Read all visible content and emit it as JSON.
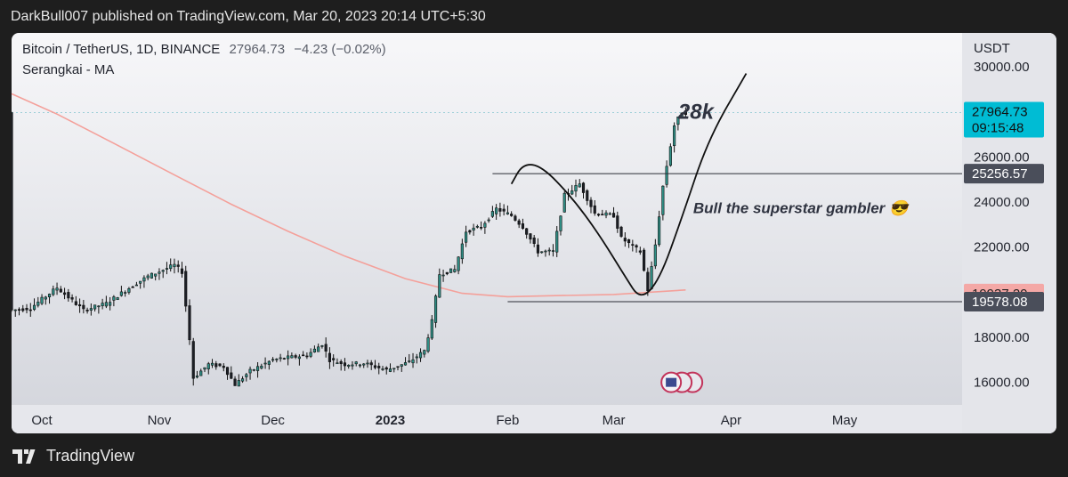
{
  "header": {
    "published_text": "DarkBull007 published on TradingView.com, Mar 20, 2023 20:14 UTC+5:30"
  },
  "symbol": {
    "name": "Bitcoin / TetherUS, 1D, BINANCE",
    "last": "27964.73",
    "change": "−4.23 (−0.02%)",
    "indicator": "Serangkai - MA"
  },
  "footer": {
    "brand": "TradingView"
  },
  "chart_data": {
    "type": "candlestick",
    "currency": "USDT",
    "ylim": [
      15000,
      31500
    ],
    "y_ticks": [
      {
        "value": 30000,
        "label": "30000.00"
      },
      {
        "value": 26000,
        "label": "26000.00"
      },
      {
        "value": 24000,
        "label": "24000.00"
      },
      {
        "value": 22000,
        "label": "22000.00"
      },
      {
        "value": 18000,
        "label": "18000.00"
      },
      {
        "value": 16000,
        "label": "16000.00"
      }
    ],
    "x_ticks": [
      {
        "date": "2022-10-01",
        "label": "Oct",
        "bold": false
      },
      {
        "date": "2022-11-01",
        "label": "Nov",
        "bold": false
      },
      {
        "date": "2022-12-01",
        "label": "Dec",
        "bold": false
      },
      {
        "date": "2023-01-01",
        "label": "2023",
        "bold": true
      },
      {
        "date": "2023-02-01",
        "label": "Feb",
        "bold": false
      },
      {
        "date": "2023-03-01",
        "label": "Mar",
        "bold": false
      },
      {
        "date": "2023-04-01",
        "label": "Apr",
        "bold": false
      },
      {
        "date": "2023-05-01",
        "label": "May",
        "bold": false
      }
    ],
    "x_range": [
      "2022-09-23",
      "2023-06-01"
    ],
    "price_labels": [
      {
        "value": 27964.73,
        "lines": [
          "27964.73",
          "09:15:48"
        ],
        "bg": "#00bcd4",
        "fg": "#111111"
      },
      {
        "value": 25256.57,
        "lines": [
          "25256.57"
        ],
        "bg": "#4a4e5a",
        "fg": "#ffffff"
      },
      {
        "value": 19937.29,
        "lines": [
          "19937.29"
        ],
        "bg": "#f4a8a6",
        "fg": "#222222"
      },
      {
        "value": 19578.08,
        "lines": [
          "19578.08"
        ],
        "bg": "#4a4e5a",
        "fg": "#ffffff"
      }
    ],
    "horizontal_lines": [
      {
        "value": 25256.57,
        "from": "2023-01-28",
        "to": "2023-04-30"
      },
      {
        "value": 19578.08,
        "from": "2023-02-01",
        "to": "2023-04-30"
      }
    ],
    "annotations": [
      {
        "text": "28k",
        "date": "2023-03-18",
        "value": 27700,
        "size": 24
      },
      {
        "text": "Bull the superstar gambler 😎",
        "date": "2023-03-22",
        "value": 23500,
        "size": 17
      }
    ],
    "series": [
      {
        "name": "MA",
        "color": "#f4a09a",
        "points": [
          {
            "date": "2022-09-23",
            "value": 28800
          },
          {
            "date": "2022-10-05",
            "value": 27900
          },
          {
            "date": "2022-10-20",
            "value": 26600
          },
          {
            "date": "2022-11-05",
            "value": 25200
          },
          {
            "date": "2022-11-20",
            "value": 23900
          },
          {
            "date": "2022-12-05",
            "value": 22700
          },
          {
            "date": "2022-12-20",
            "value": 21600
          },
          {
            "date": "2023-01-05",
            "value": 20600
          },
          {
            "date": "2023-01-20",
            "value": 19950
          },
          {
            "date": "2023-02-01",
            "value": 19800
          },
          {
            "date": "2023-02-15",
            "value": 19850
          },
          {
            "date": "2023-03-01",
            "value": 19900
          },
          {
            "date": "2023-03-20",
            "value": 20100
          }
        ]
      }
    ],
    "drawings": [
      {
        "name": "rounded-curve",
        "points": [
          {
            "date": "2023-02-02",
            "value": 24800
          },
          {
            "date": "2023-02-05",
            "value": 25700
          },
          {
            "date": "2023-02-10",
            "value": 25600
          },
          {
            "date": "2023-02-18",
            "value": 24200
          },
          {
            "date": "2023-02-25",
            "value": 22600
          },
          {
            "date": "2023-03-04",
            "value": 20700
          },
          {
            "date": "2023-03-08",
            "value": 19650
          },
          {
            "date": "2023-03-13",
            "value": 20500
          },
          {
            "date": "2023-03-19",
            "value": 23300
          },
          {
            "date": "2023-03-26",
            "value": 26800
          },
          {
            "date": "2023-04-05",
            "value": 29700
          }
        ]
      }
    ],
    "price_path": [
      {
        "date": "2022-09-23",
        "value": 19200
      },
      {
        "date": "2022-09-28",
        "value": 19300
      },
      {
        "date": "2022-10-05",
        "value": 20200
      },
      {
        "date": "2022-10-12",
        "value": 19200
      },
      {
        "date": "2022-10-18",
        "value": 19500
      },
      {
        "date": "2022-10-25",
        "value": 20300
      },
      {
        "date": "2022-10-29",
        "value": 20700
      },
      {
        "date": "2022-11-05",
        "value": 21200
      },
      {
        "date": "2022-11-07",
        "value": 20900
      },
      {
        "date": "2022-11-09",
        "value": 17900
      },
      {
        "date": "2022-11-10",
        "value": 16200
      },
      {
        "date": "2022-11-14",
        "value": 16800
      },
      {
        "date": "2022-11-18",
        "value": 16700
      },
      {
        "date": "2022-11-21",
        "value": 15900
      },
      {
        "date": "2022-11-25",
        "value": 16500
      },
      {
        "date": "2022-12-01",
        "value": 17000
      },
      {
        "date": "2022-12-05",
        "value": 17100
      },
      {
        "date": "2022-12-10",
        "value": 17200
      },
      {
        "date": "2022-12-14",
        "value": 17700
      },
      {
        "date": "2022-12-16",
        "value": 17000
      },
      {
        "date": "2022-12-20",
        "value": 16800
      },
      {
        "date": "2022-12-25",
        "value": 16850
      },
      {
        "date": "2022-12-31",
        "value": 16550
      },
      {
        "date": "2023-01-06",
        "value": 16900
      },
      {
        "date": "2023-01-10",
        "value": 17400
      },
      {
        "date": "2023-01-12",
        "value": 18700
      },
      {
        "date": "2023-01-14",
        "value": 20800
      },
      {
        "date": "2023-01-18",
        "value": 21000
      },
      {
        "date": "2023-01-21",
        "value": 22700
      },
      {
        "date": "2023-01-25",
        "value": 22900
      },
      {
        "date": "2023-01-29",
        "value": 23700
      },
      {
        "date": "2023-02-02",
        "value": 23400
      },
      {
        "date": "2023-02-05",
        "value": 22900
      },
      {
        "date": "2023-02-09",
        "value": 21800
      },
      {
        "date": "2023-02-13",
        "value": 21800
      },
      {
        "date": "2023-02-16",
        "value": 24300
      },
      {
        "date": "2023-02-20",
        "value": 24800
      },
      {
        "date": "2023-02-24",
        "value": 23500
      },
      {
        "date": "2023-03-01",
        "value": 23400
      },
      {
        "date": "2023-03-03",
        "value": 22400
      },
      {
        "date": "2023-03-08",
        "value": 21800
      },
      {
        "date": "2023-03-10",
        "value": 20100
      },
      {
        "date": "2023-03-12",
        "value": 22100
      },
      {
        "date": "2023-03-14",
        "value": 24700
      },
      {
        "date": "2023-03-17",
        "value": 27400
      },
      {
        "date": "2023-03-19",
        "value": 28000
      },
      {
        "date": "2023-03-20",
        "value": 27964.73
      }
    ]
  }
}
